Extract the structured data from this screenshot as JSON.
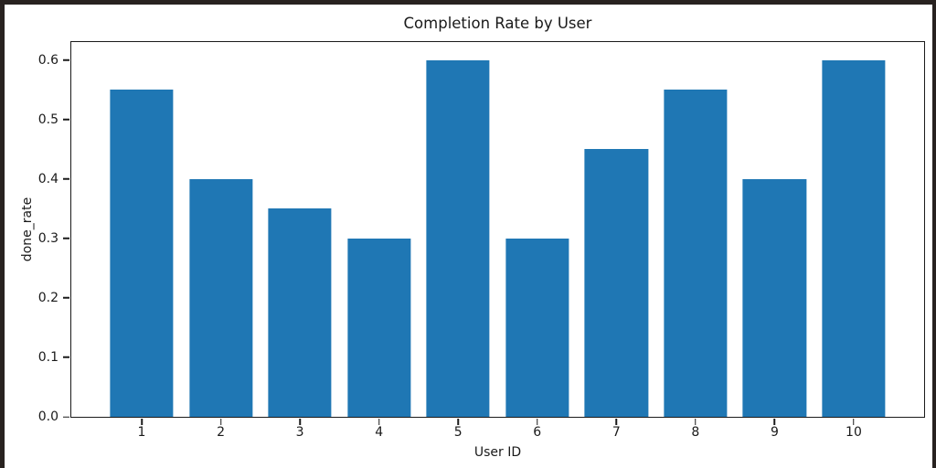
{
  "figure": {
    "border_color": "#282220",
    "background_color": "#ffffff"
  },
  "chart_data": {
    "type": "bar",
    "title": "Completion Rate by User",
    "xlabel": "User ID",
    "ylabel": "done_rate",
    "categories": [
      "1",
      "2",
      "3",
      "4",
      "5",
      "6",
      "7",
      "8",
      "9",
      "10"
    ],
    "x": [
      1,
      2,
      3,
      4,
      5,
      6,
      7,
      8,
      9,
      10
    ],
    "values": [
      0.55,
      0.4,
      0.35,
      0.3,
      0.6,
      0.3,
      0.45,
      0.55,
      0.4,
      0.6
    ],
    "bar_color": "#1f77b4",
    "axis_color": "#1a1a1a",
    "bar_width": 0.8,
    "yticks": [
      0.0,
      0.1,
      0.2,
      0.3,
      0.4,
      0.5,
      0.6
    ],
    "ytick_labels": [
      "0.0",
      "0.1",
      "0.2",
      "0.3",
      "0.4",
      "0.5",
      "0.6"
    ],
    "ylim": [
      0,
      0.63
    ],
    "xlim": [
      0.11,
      10.89
    ],
    "grid": false,
    "legend": null
  }
}
